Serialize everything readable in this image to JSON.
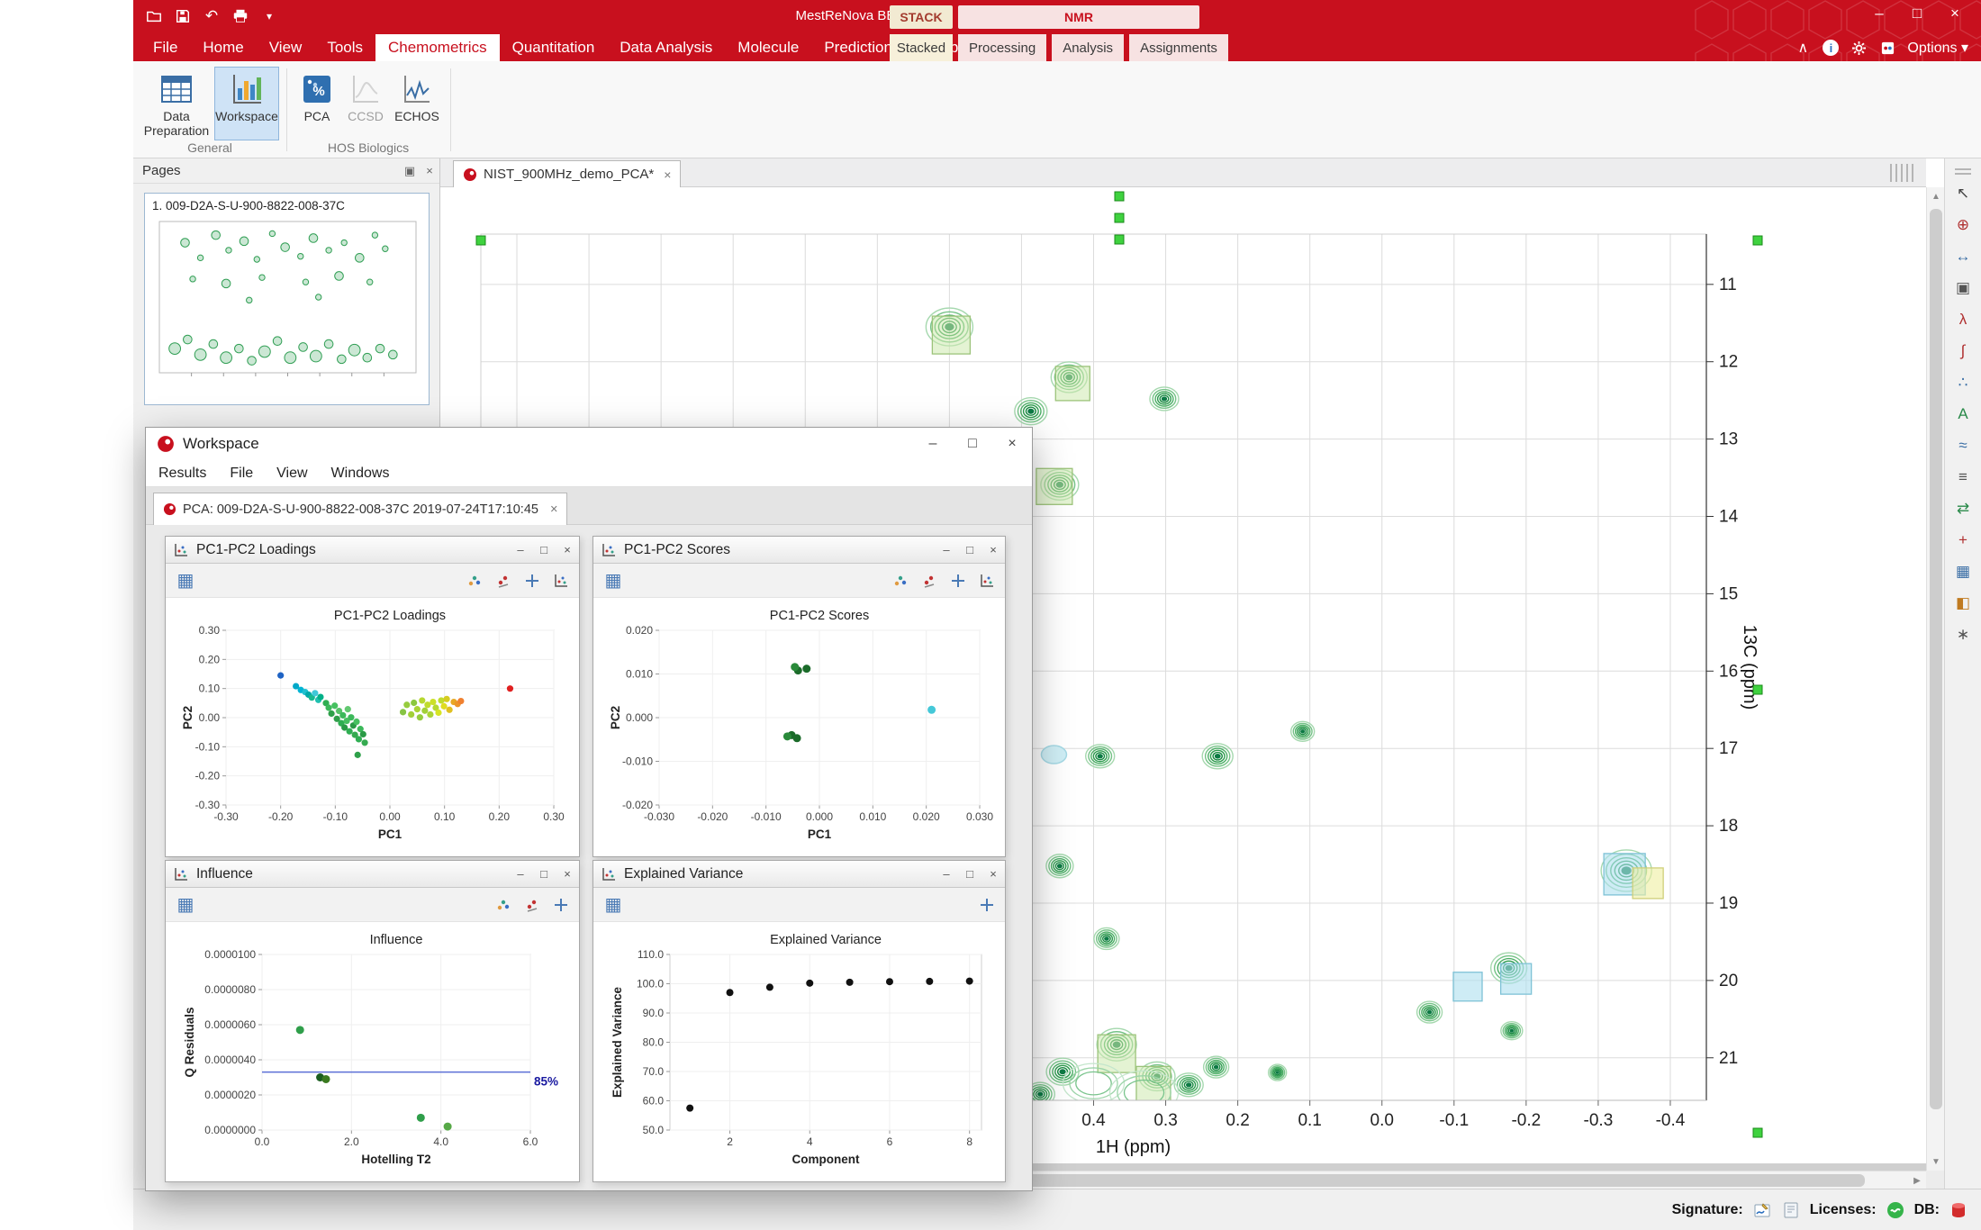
{
  "titlebar": {
    "title": "MestReNova BETA",
    "stack_label": "STACK",
    "nmr_label": "NMR"
  },
  "menubar": {
    "tabs": [
      "File",
      "Home",
      "View",
      "Tools",
      "Chemometrics",
      "Quantitation",
      "Data Analysis",
      "Molecule",
      "Prediction",
      "Database"
    ],
    "active_tab": "Chemometrics",
    "doc_tabs": [
      "Stacked",
      "Processing",
      "Analysis",
      "Assignments"
    ],
    "options_label": "Options"
  },
  "ribbon": {
    "groups": [
      {
        "label": "General",
        "buttons": [
          {
            "label": "Data Preparation"
          },
          {
            "label": "Workspace"
          }
        ]
      },
      {
        "label": "HOS Biologics",
        "buttons": [
          {
            "label": "PCA"
          },
          {
            "label": "CCSD"
          },
          {
            "label": "ECHOS"
          }
        ]
      }
    ],
    "active_button": "Workspace",
    "disabled_button": "CCSD"
  },
  "pages_panel": {
    "title": "Pages",
    "page_label": "1. 009-D2A-S-U-900-8822-008-37C",
    "thumbnail_dots": [
      [
        10,
        14,
        3
      ],
      [
        16,
        24,
        2
      ],
      [
        22,
        9,
        3
      ],
      [
        27,
        19,
        2
      ],
      [
        33,
        13,
        3
      ],
      [
        38,
        25,
        2
      ],
      [
        44,
        8,
        2
      ],
      [
        49,
        17,
        3
      ],
      [
        55,
        23,
        2
      ],
      [
        60,
        11,
        3
      ],
      [
        66,
        19,
        2
      ],
      [
        72,
        14,
        2
      ],
      [
        78,
        24,
        3
      ],
      [
        84,
        9,
        2
      ],
      [
        88,
        18,
        2
      ],
      [
        13,
        38,
        2
      ],
      [
        26,
        41,
        3
      ],
      [
        40,
        37,
        2
      ],
      [
        57,
        40,
        2
      ],
      [
        70,
        36,
        3
      ],
      [
        82,
        40,
        2
      ],
      [
        35,
        52,
        2
      ],
      [
        62,
        50,
        2
      ],
      [
        6,
        84,
        4
      ],
      [
        11,
        78,
        3
      ],
      [
        16,
        88,
        4
      ],
      [
        21,
        81,
        3
      ],
      [
        26,
        90,
        4
      ],
      [
        31,
        84,
        3
      ],
      [
        36,
        92,
        3
      ],
      [
        41,
        86,
        4
      ],
      [
        46,
        79,
        3
      ],
      [
        51,
        90,
        4
      ],
      [
        56,
        83,
        3
      ],
      [
        61,
        89,
        4
      ],
      [
        66,
        81,
        3
      ],
      [
        71,
        91,
        3
      ],
      [
        76,
        85,
        4
      ],
      [
        81,
        90,
        3
      ],
      [
        86,
        84,
        3
      ],
      [
        91,
        88,
        3
      ]
    ]
  },
  "doc": {
    "tab_label": "NIST_900MHz_demo_PCA*"
  },
  "workspace": {
    "title": "Workspace",
    "menu": [
      "Results",
      "File",
      "View",
      "Windows"
    ],
    "tab_label": "PCA: 009-D2A-S-U-900-8822-008-37C 2019-07-24T17:10:45",
    "panels": [
      {
        "title": "PC1-PC2 Loadings"
      },
      {
        "title": "PC1-PC2 Scores"
      },
      {
        "title": "Influence"
      },
      {
        "title": "Explained Variance"
      }
    ]
  },
  "right_toolbar": {
    "icons": [
      "cursor",
      "zoom",
      "pan",
      "full-view",
      "peak-picking",
      "integration",
      "multiplets",
      "assignments",
      "overlay",
      "stack",
      "swap-axes",
      "crosshair",
      "data-table",
      "palette",
      "options"
    ]
  },
  "statusbar": {
    "signature_label": "Signature:",
    "licenses_label": "Licenses:",
    "db_label": "DB:"
  },
  "colors": {
    "brand_red": "#c8101e",
    "selection_green": "#3fd23f",
    "highlight_cyan": "#ade0ee",
    "highlight_yellow": "#eeeea0"
  },
  "chart_data": [
    {
      "id": "loadings",
      "type": "scatter",
      "title": "PC1-PC2 Loadings",
      "xlabel": "PC1",
      "ylabel": "PC2",
      "xlim": [
        -0.3,
        0.3
      ],
      "ylim": [
        -0.3,
        0.3
      ],
      "xticks": [
        "-0.30",
        "-0.20",
        "-0.10",
        "0.00",
        "0.10",
        "0.20",
        "0.30"
      ],
      "yticks": [
        "0.30",
        "0.20",
        "0.10",
        "0.00",
        "-0.10",
        "-0.20",
        "-0.30"
      ],
      "points": [
        [
          -0.2,
          0.145,
          "#1f63c4"
        ],
        [
          -0.172,
          0.108,
          "#00a8c8"
        ],
        [
          -0.163,
          0.095,
          "#00b4d4"
        ],
        [
          -0.155,
          0.088,
          "#1fc0d0"
        ],
        [
          -0.149,
          0.079,
          "#00a8a8"
        ],
        [
          -0.143,
          0.069,
          "#18b890"
        ],
        [
          -0.137,
          0.084,
          "#40c8d8"
        ],
        [
          -0.131,
          0.061,
          "#20c0b0"
        ],
        [
          -0.127,
          0.071,
          "#00b088"
        ],
        [
          -0.117,
          0.05,
          "#2fae52"
        ],
        [
          -0.112,
          0.034,
          "#3cb85a"
        ],
        [
          -0.107,
          0.014,
          "#2fa04a"
        ],
        [
          -0.101,
          0.041,
          "#46c060"
        ],
        [
          -0.097,
          -0.004,
          "#2f9e4a"
        ],
        [
          -0.093,
          0.023,
          "#55c268"
        ],
        [
          -0.089,
          -0.019,
          "#2fae52"
        ],
        [
          -0.086,
          0.008,
          "#3cb85a"
        ],
        [
          -0.083,
          -0.034,
          "#2a9a46"
        ],
        [
          -0.079,
          -0.011,
          "#46c060"
        ],
        [
          -0.077,
          0.029,
          "#62c870"
        ],
        [
          -0.074,
          -0.047,
          "#2fae52"
        ],
        [
          -0.071,
          0.001,
          "#3cb85a"
        ],
        [
          -0.067,
          -0.027,
          "#2a9a46"
        ],
        [
          -0.064,
          -0.059,
          "#35aa50"
        ],
        [
          -0.061,
          -0.014,
          "#46c060"
        ],
        [
          -0.057,
          -0.074,
          "#2fae52"
        ],
        [
          -0.054,
          -0.039,
          "#3cb85a"
        ],
        [
          -0.049,
          -0.057,
          "#2a9a46"
        ],
        [
          -0.046,
          -0.086,
          "#35aa50"
        ],
        [
          -0.059,
          -0.128,
          "#2fa04a"
        ],
        [
          0.024,
          0.019,
          "#86c444"
        ],
        [
          0.031,
          0.044,
          "#96cc3e"
        ],
        [
          0.039,
          0.011,
          "#a2d038"
        ],
        [
          0.044,
          0.051,
          "#8cc83e"
        ],
        [
          0.05,
          0.029,
          "#aad434"
        ],
        [
          0.055,
          0.001,
          "#96cc3e"
        ],
        [
          0.059,
          0.059,
          "#b6d830"
        ],
        [
          0.064,
          0.024,
          "#a2d038"
        ],
        [
          0.069,
          0.044,
          "#c0dc2c"
        ],
        [
          0.074,
          0.011,
          "#aad434"
        ],
        [
          0.079,
          0.054,
          "#cce028"
        ],
        [
          0.084,
          0.034,
          "#b6d830"
        ],
        [
          0.089,
          0.017,
          "#d6e424"
        ],
        [
          0.094,
          0.059,
          "#c0dc2c"
        ],
        [
          0.099,
          0.039,
          "#e0dc20"
        ],
        [
          0.104,
          0.064,
          "#d6cc20"
        ],
        [
          0.109,
          0.027,
          "#e0c020"
        ],
        [
          0.117,
          0.054,
          "#e8a824"
        ],
        [
          0.124,
          0.047,
          "#ec9428"
        ],
        [
          0.13,
          0.057,
          "#f08030"
        ],
        [
          0.22,
          0.1,
          "#e02020"
        ]
      ]
    },
    {
      "id": "scores",
      "type": "scatter",
      "title": "PC1-PC2 Scores",
      "xlabel": "PC1",
      "ylabel": "PC2",
      "xlim": [
        -0.03,
        0.03
      ],
      "ylim": [
        -0.02,
        0.02
      ],
      "xticks": [
        "-0.030",
        "-0.020",
        "-0.010",
        "0.000",
        "0.010",
        "0.020",
        "0.030"
      ],
      "yticks": [
        "0.020",
        "0.010",
        "0.000",
        "-0.010",
        "-0.020"
      ],
      "points": [
        [
          -0.004,
          0.0108,
          "#1b6b2a"
        ],
        [
          -0.0024,
          0.0112,
          "#1b6b2a"
        ],
        [
          -0.0046,
          0.0116,
          "#2a8a3a"
        ],
        [
          -0.0052,
          -0.004,
          "#1b6b2a"
        ],
        [
          -0.0042,
          -0.0047,
          "#1b6b2a"
        ],
        [
          -0.006,
          -0.0043,
          "#2a8a3a"
        ],
        [
          0.021,
          0.0018,
          "#45c8d8"
        ]
      ]
    },
    {
      "id": "influence",
      "type": "scatter",
      "title": "Influence",
      "xlabel": "Hotelling T2",
      "ylabel": "Q Residuals",
      "xlim": [
        0,
        6
      ],
      "ylim": [
        0,
        1e-05
      ],
      "xticks": [
        "0.0",
        "2.0",
        "4.0",
        "6.0"
      ],
      "yticks": [
        "0.0000000",
        "0.0000020",
        "0.0000040",
        "0.0000060",
        "0.0000080",
        "0.0000100"
      ],
      "hline": {
        "y": 3.3e-06,
        "color": "#5b6fd6",
        "label": "85%",
        "label_color": "#1a1aa0"
      },
      "points": [
        [
          0.85,
          5.7e-06,
          "#2f9e4a"
        ],
        [
          1.3,
          3e-06,
          "#1b5e20"
        ],
        [
          1.43,
          2.9e-06,
          "#3a7a20"
        ],
        [
          3.55,
          7e-07,
          "#2f9e4a"
        ],
        [
          4.15,
          2e-07,
          "#56a846"
        ]
      ]
    },
    {
      "id": "explained",
      "type": "scatter",
      "title": "Explained Variance",
      "xlabel": "Component",
      "ylabel": "Explained Variance",
      "xlim": [
        0.5,
        8.3
      ],
      "ylim": [
        50,
        110
      ],
      "xticks": [
        "2",
        "4",
        "6",
        "8"
      ],
      "yticks": [
        "50.0",
        "60.0",
        "70.0",
        "80.0",
        "90.0",
        "100.0",
        "110.0"
      ],
      "points": [
        [
          1,
          57.5,
          "#111"
        ],
        [
          2,
          97.0,
          "#111"
        ],
        [
          3,
          98.8,
          "#111"
        ],
        [
          4,
          100.2,
          "#111"
        ],
        [
          5,
          100.5,
          "#111"
        ],
        [
          6,
          100.7,
          "#111"
        ],
        [
          7,
          100.8,
          "#111"
        ],
        [
          8,
          100.9,
          "#111"
        ]
      ]
    },
    {
      "id": "nmr",
      "type": "heatmap",
      "title": "",
      "xlabel": "1H (ppm)",
      "ylabel": "13C (ppm)",
      "xlim": [
        1.25,
        -0.45
      ],
      "ylim": [
        10.35,
        21.55
      ],
      "xticks": [
        "0.4",
        "0.3",
        "0.2",
        "0.1",
        "0.0",
        "-0.1",
        "-0.2",
        "-0.3",
        "-0.4"
      ],
      "yticks": [
        "11",
        "12",
        "13",
        "14",
        "15",
        "16",
        "17",
        "18",
        "19",
        "20",
        "21"
      ],
      "peaks": [
        [
          0.6,
          11.55,
          26,
          21,
          "rings",
          [
            [
              2,
              9,
              42,
              "green"
            ]
          ]
        ],
        [
          0.434,
          12.2,
          20,
          17,
          "rings",
          [
            [
              4,
              7,
              38,
              "green"
            ]
          ]
        ],
        [
          0.302,
          12.48,
          16,
          13,
          "rings",
          null
        ],
        [
          0.487,
          12.64,
          18,
          15,
          "rings",
          null
        ],
        [
          0.447,
          13.59,
          21,
          17,
          "rings",
          [
            [
              -6,
              2,
              40,
              "green"
            ]
          ]
        ],
        [
          0.11,
          16.78,
          13,
          11,
          "rings",
          null
        ],
        [
          0.391,
          17.1,
          16,
          13,
          "rings",
          null
        ],
        [
          0.455,
          17.08,
          14,
          10,
          "cyan",
          null
        ],
        [
          0.228,
          17.1,
          17,
          14,
          "rings",
          null
        ],
        [
          0.447,
          18.52,
          15,
          13,
          "rings",
          null
        ],
        [
          -0.339,
          18.58,
          28,
          23,
          "rings",
          [
            [
              -2,
              4,
              46,
              "cyan"
            ],
            [
              24,
              14,
              34,
              "yellow"
            ]
          ]
        ],
        [
          0.382,
          19.46,
          14,
          12,
          "rings",
          null
        ],
        [
          -0.176,
          19.84,
          20,
          17,
          "rings",
          [
            [
              8,
              12,
              34,
              "cyan"
            ]
          ]
        ],
        [
          -0.119,
          20.08,
          0,
          0,
          "none",
          [
            [
              0,
              0,
              32,
              "cyan"
            ]
          ]
        ],
        [
          -0.18,
          20.65,
          12,
          10,
          "rings",
          null
        ],
        [
          -0.066,
          20.41,
          14,
          12,
          "rings",
          null
        ],
        [
          0.368,
          20.83,
          22,
          18,
          "rings",
          [
            [
              0,
              10,
              42,
              "green"
            ]
          ]
        ],
        [
          0.443,
          21.18,
          18,
          15,
          "rings",
          null
        ],
        [
          0.312,
          21.24,
          20,
          16,
          "rings",
          [
            [
              -4,
              8,
              38,
              "green"
            ]
          ]
        ],
        [
          0.268,
          21.35,
          16,
          13,
          "rings",
          null
        ],
        [
          0.474,
          21.47,
          16,
          13,
          "rings",
          null
        ],
        [
          0.23,
          21.12,
          14,
          12,
          "rings",
          null
        ],
        [
          0.4,
          21.33,
          34,
          22,
          "halo",
          null
        ],
        [
          0.33,
          21.45,
          38,
          24,
          "halo",
          null
        ],
        [
          0.145,
          21.19,
          10,
          9,
          "rings",
          null
        ]
      ]
    }
  ]
}
